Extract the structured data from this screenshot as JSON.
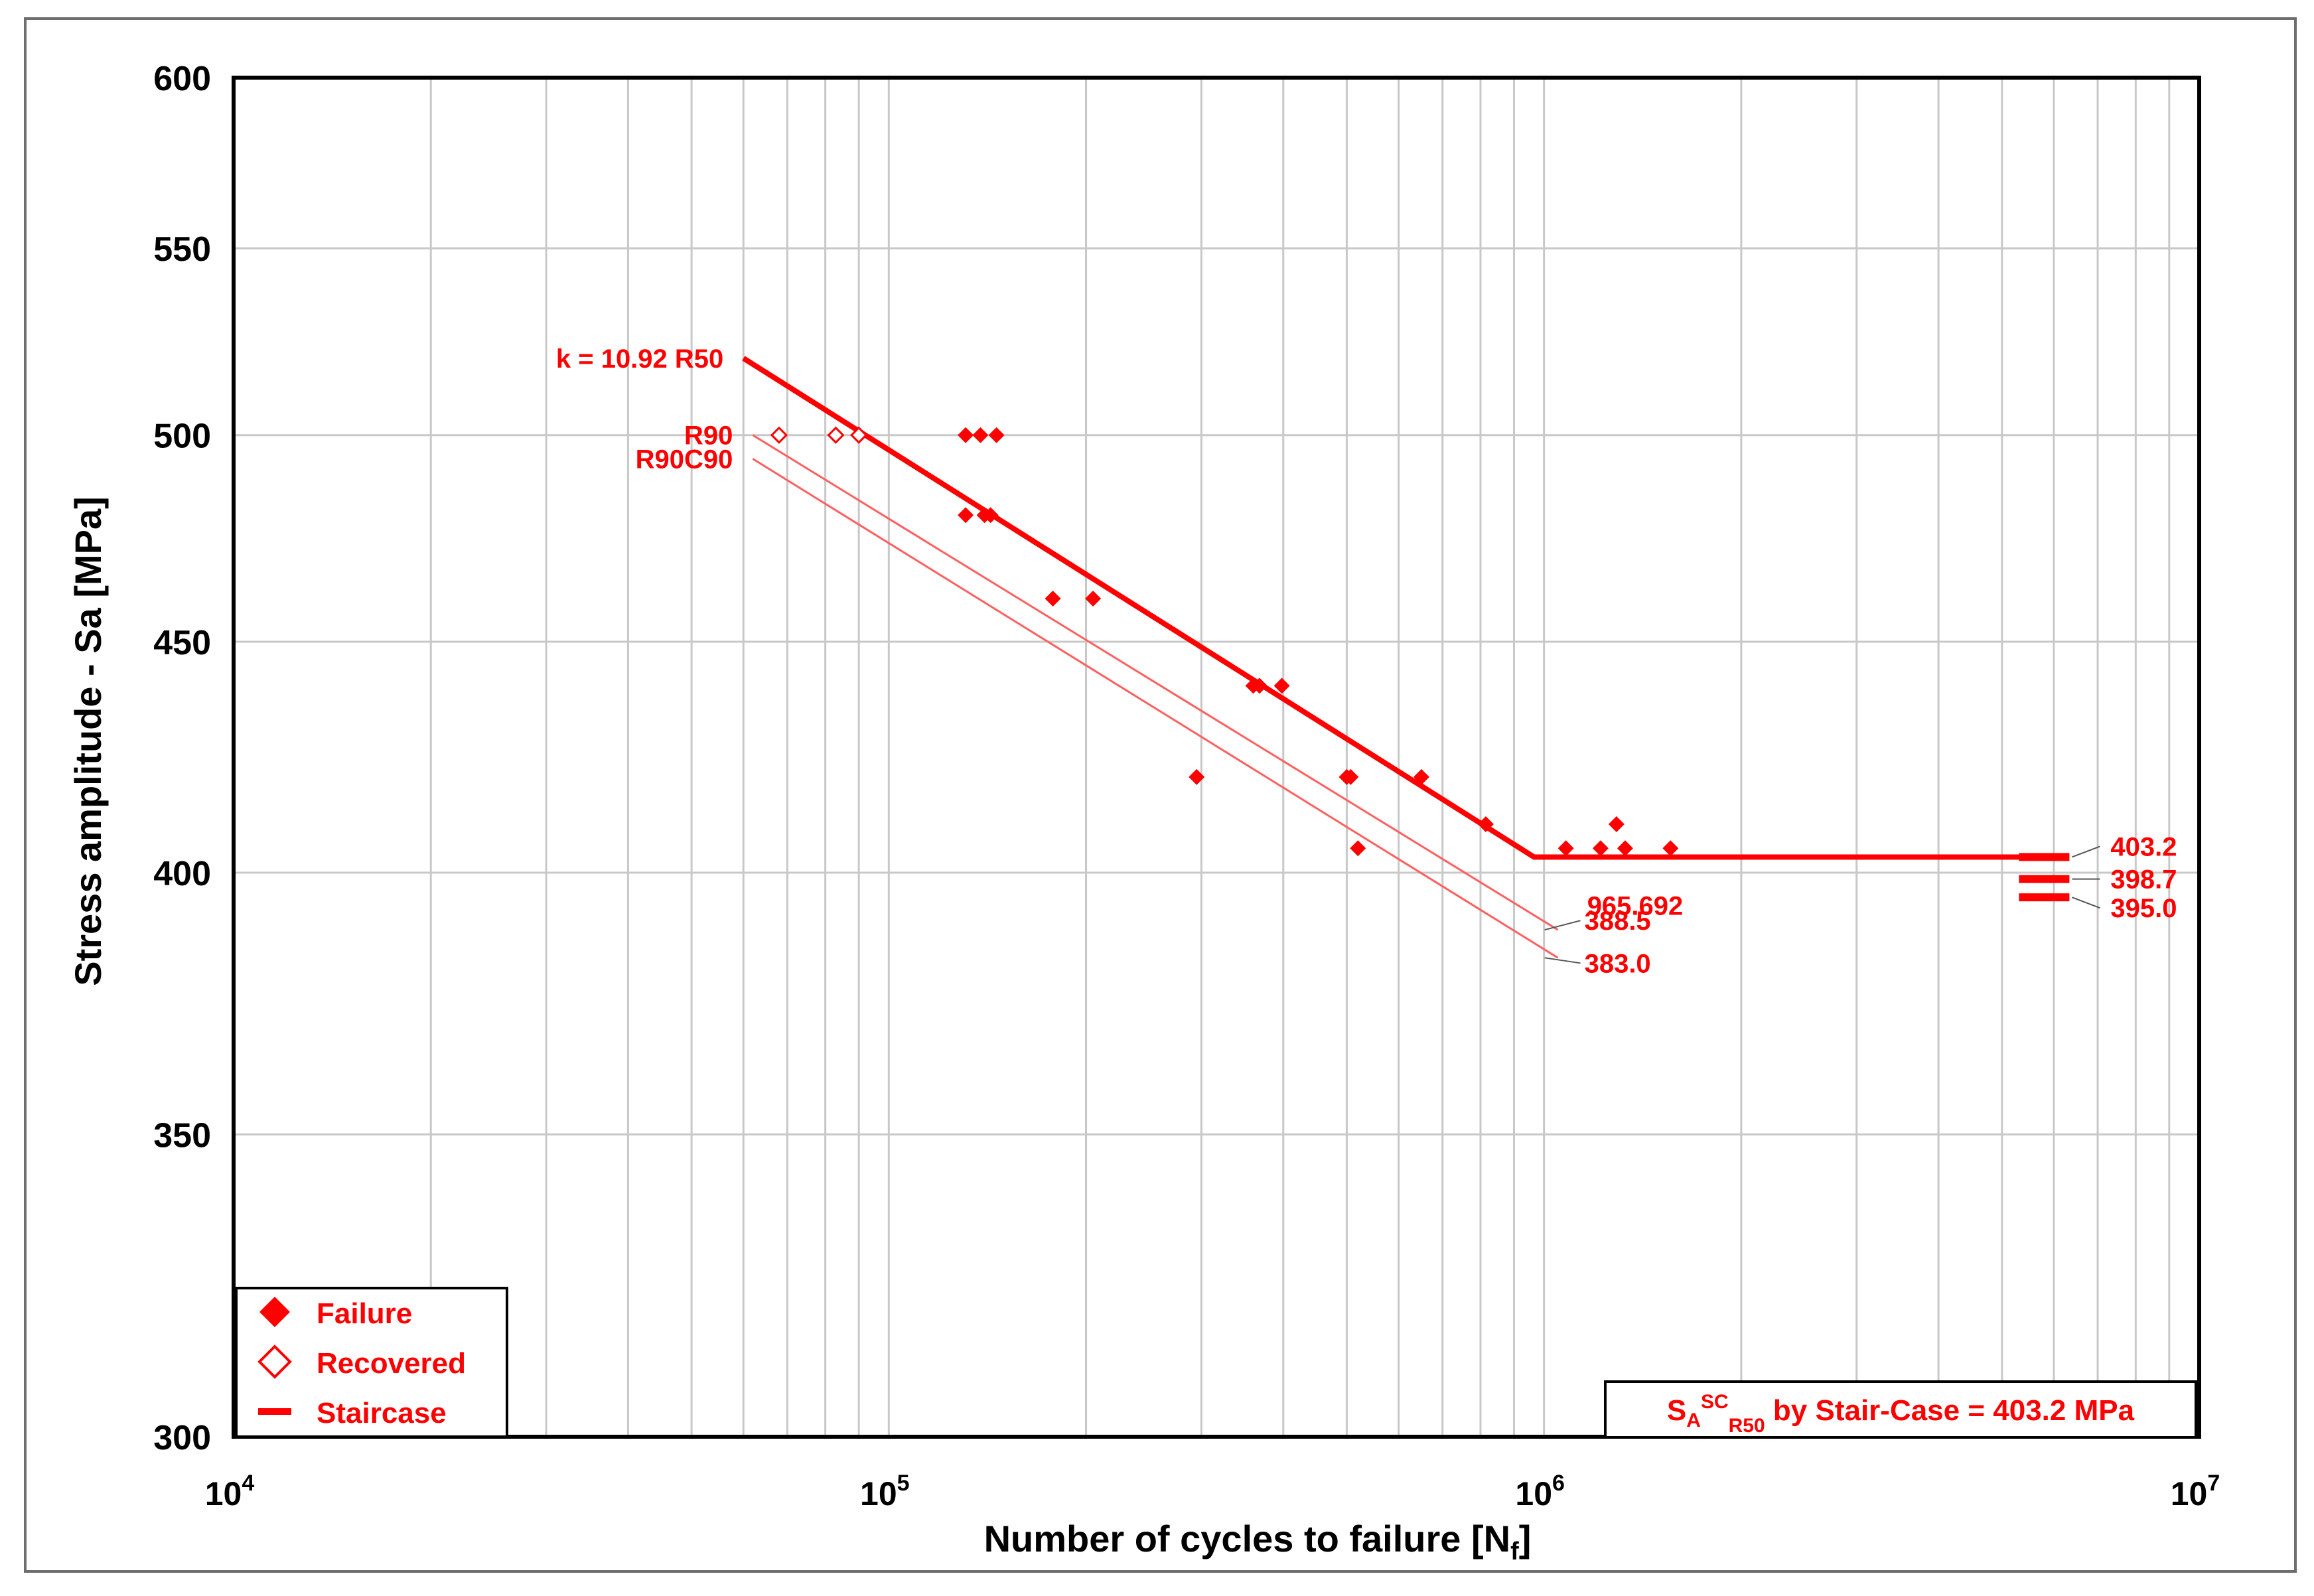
{
  "chart_data": {
    "type": "scatter",
    "x_scale": "log",
    "y_scale": "log",
    "xlim": [
      10000,
      10000000
    ],
    "ylim": [
      300,
      600
    ],
    "grid": true,
    "xlabel": "Number of cycles to failure [Nf]",
    "xlabel_parts": {
      "main": "Number of cycles to failure [N",
      "sub": "f",
      "end": "]"
    },
    "ylabel": "Stress amplitude - Sa [MPa]",
    "x_ticks": [
      {
        "value": 10000,
        "base": "10",
        "exp": "4"
      },
      {
        "value": 100000,
        "base": "10",
        "exp": "5"
      },
      {
        "value": 1000000,
        "base": "10",
        "exp": "6"
      },
      {
        "value": 10000000,
        "base": "10",
        "exp": "7"
      }
    ],
    "y_ticks": [
      {
        "value": 300,
        "label": "300"
      },
      {
        "value": 350,
        "label": "350"
      },
      {
        "value": 400,
        "label": "400"
      },
      {
        "value": 450,
        "label": "450"
      },
      {
        "value": 500,
        "label": "500"
      },
      {
        "value": 550,
        "label": "550"
      },
      {
        "value": 600,
        "label": "600"
      }
    ],
    "series": [
      {
        "name": "Failure",
        "marker": "filled-diamond",
        "color": "#ff0000",
        "points": [
          [
            131000,
            500
          ],
          [
            138000,
            500
          ],
          [
            146000,
            500
          ],
          [
            131000,
            480
          ],
          [
            140000,
            480
          ],
          [
            143000,
            480
          ],
          [
            178000,
            460
          ],
          [
            205000,
            460
          ],
          [
            295000,
            420
          ],
          [
            360000,
            440
          ],
          [
            368000,
            440
          ],
          [
            398000,
            440
          ],
          [
            500000,
            420
          ],
          [
            507000,
            420
          ],
          [
            520000,
            405
          ],
          [
            650000,
            420
          ],
          [
            815000,
            410
          ],
          [
            1080000,
            405
          ],
          [
            1220000,
            405
          ],
          [
            1290000,
            410
          ],
          [
            1330000,
            405
          ],
          [
            1560000,
            405
          ]
        ]
      },
      {
        "name": "Recovered",
        "marker": "open-diamond",
        "color": "#ff0000",
        "points": [
          [
            68000,
            500
          ],
          [
            83000,
            500
          ],
          [
            90000,
            500
          ]
        ]
      },
      {
        "name": "Staircase",
        "marker": "dash",
        "color": "#ff0000",
        "points": [
          [
            5800000,
            403.2
          ],
          [
            5800000,
            398.7
          ],
          [
            5800000,
            395.0
          ]
        ]
      }
    ],
    "lines": [
      {
        "name": "k = 10.92 R50",
        "color": "#ff0000",
        "weight": "thick",
        "points": [
          [
            60000,
            520
          ],
          [
            965692,
            403.2
          ],
          [
            5800000,
            403.2
          ]
        ],
        "label": "k = 10.92 R50"
      },
      {
        "name": "R90",
        "color": "#ff6060",
        "weight": "thin",
        "points": [
          [
            62000,
            500
          ],
          [
            1050000,
            388.5
          ]
        ],
        "label": "R90"
      },
      {
        "name": "R90C90",
        "color": "#ff6060",
        "weight": "thin",
        "points": [
          [
            62000,
            494
          ],
          [
            1050000,
            383.0
          ]
        ],
        "label": "R90C90"
      }
    ],
    "annotations": [
      {
        "text": "965.692",
        "x": 965692,
        "y": 396,
        "near": "knee"
      },
      {
        "text": "388.5",
        "x": 1050000,
        "y": 388.5
      },
      {
        "text": "383.0",
        "x": 1050000,
        "y": 383.0
      },
      {
        "text": "403.2",
        "x": 5800000,
        "y": 403.2
      },
      {
        "text": "398.7",
        "x": 5800000,
        "y": 398.7
      },
      {
        "text": "395.0",
        "x": 5800000,
        "y": 395.0
      }
    ],
    "legend": {
      "placement": "bottom-left",
      "items": [
        {
          "label": "Failure",
          "marker": "filled-diamond"
        },
        {
          "label": "Recovered",
          "marker": "open-diamond"
        },
        {
          "label": "Staircase",
          "marker": "dash"
        }
      ]
    },
    "info_box": {
      "placement": "bottom-right",
      "s": "S",
      "sub_a": "A",
      "sup_sc": "SC",
      "sub_r50": "R50",
      "rest": " by Stair-Case = 403.2 MPa"
    },
    "colors": {
      "accent": "#ff0000",
      "thin_line": "#ff6060",
      "grid": "#c8c8c8",
      "frame": "#000000"
    }
  }
}
